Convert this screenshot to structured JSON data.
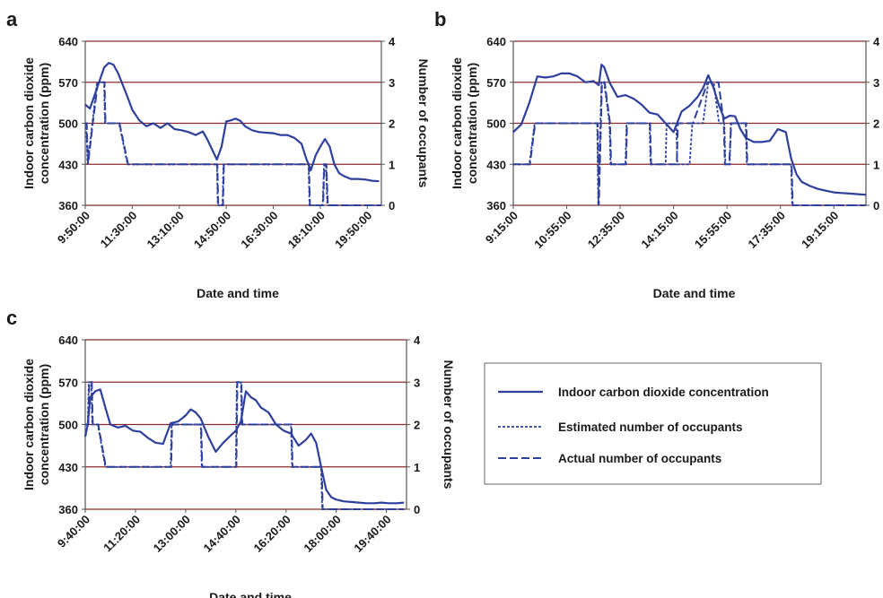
{
  "figure": {
    "legend": {
      "co2_label": "Indoor carbon dioxide concentration",
      "estimated_label": "Estimated number of occupants",
      "actual_label": "Actual number of occupants"
    }
  },
  "colors": {
    "series": "#2e3f9e",
    "grid": "#8b2a2a",
    "axis": "#555555",
    "text": "#1a1a1a"
  },
  "chart_data": [
    {
      "panel": "a",
      "type": "line",
      "xlabel": "Date and time",
      "ylabel_left": "Indoor carbon dioxide concentration (ppm)",
      "ylabel_right": "Number of occupants",
      "yticks_left": [
        "360",
        "430",
        "500",
        "570",
        "640"
      ],
      "yticks_right": [
        "0",
        "1",
        "2",
        "3",
        "4"
      ],
      "xticks": [
        "9:50:00",
        "11:30:00",
        "13:10:00",
        "14:50:00",
        "16:30:00",
        "18:10:00",
        "19:50:00"
      ],
      "xlim": [
        "9:50",
        "20:20"
      ],
      "ylim_left": [
        360,
        640
      ],
      "ylim_right": [
        0,
        4
      ],
      "grid": true,
      "co2": {
        "name": "Indoor carbon dioxide concentration",
        "x": [
          "9:50",
          "10:00",
          "10:15",
          "10:30",
          "10:40",
          "10:50",
          "11:00",
          "11:10",
          "11:20",
          "11:30",
          "11:45",
          "12:00",
          "12:15",
          "12:30",
          "12:45",
          "13:00",
          "13:15",
          "13:30",
          "13:45",
          "14:00",
          "14:10",
          "14:20",
          "14:30",
          "14:40",
          "14:50",
          "15:00",
          "15:10",
          "15:20",
          "15:30",
          "15:45",
          "16:00",
          "16:15",
          "16:30",
          "16:45",
          "17:00",
          "17:15",
          "17:30",
          "17:40",
          "17:50",
          "18:00",
          "18:10",
          "18:20",
          "18:30",
          "18:40",
          "18:50",
          "19:00",
          "19:15",
          "19:30",
          "19:45",
          "20:00",
          "20:15"
        ],
        "values": [
          532,
          525,
          560,
          595,
          603,
          600,
          585,
          565,
          545,
          523,
          505,
          495,
          500,
          492,
          500,
          490,
          488,
          485,
          480,
          486,
          472,
          455,
          438,
          460,
          503,
          505,
          508,
          504,
          495,
          488,
          485,
          484,
          483,
          480,
          480,
          475,
          465,
          440,
          420,
          445,
          460,
          473,
          460,
          430,
          415,
          410,
          405,
          405,
          404,
          402,
          401
        ]
      },
      "estimated": {
        "name": "Estimated number of occupants",
        "x": [
          "9:50",
          "9:52",
          "9:55",
          "10:05",
          "10:15",
          "10:18",
          "10:30",
          "10:32",
          "10:45",
          "10:47",
          "11:00",
          "11:02",
          "11:20",
          "11:30",
          "12:00",
          "12:30",
          "13:00",
          "13:30",
          "14:00",
          "14:20",
          "14:30",
          "14:32",
          "14:42",
          "14:44",
          "15:00",
          "15:30",
          "16:00",
          "16:30",
          "17:00",
          "17:30",
          "17:35",
          "17:45",
          "17:47",
          "18:00",
          "18:15",
          "18:18",
          "18:22",
          "18:25",
          "18:30",
          "19:00",
          "19:30",
          "20:00",
          "20:20"
        ],
        "values": [
          2,
          2,
          1,
          2,
          3,
          3,
          3,
          2,
          2,
          2,
          2,
          2,
          1,
          1,
          1,
          1,
          1,
          1,
          1,
          1,
          1,
          0,
          0,
          1,
          1,
          1,
          1,
          1,
          1,
          1,
          1,
          1,
          0,
          0,
          0,
          1,
          1,
          0,
          0,
          0,
          0,
          0,
          0
        ]
      },
      "actual": {
        "name": "Actual number of occupants",
        "x": [
          "9:50",
          "9:53",
          "9:56",
          "10:06",
          "10:17",
          "10:31",
          "10:33",
          "10:46",
          "10:48",
          "11:00",
          "11:03",
          "11:21",
          "11:30",
          "12:00",
          "13:00",
          "14:00",
          "14:21",
          "14:31",
          "14:33",
          "14:43",
          "14:45",
          "15:30",
          "16:30",
          "17:30",
          "17:46",
          "17:48",
          "18:00",
          "18:16",
          "18:19",
          "18:23",
          "18:26",
          "18:30",
          "19:00",
          "20:00",
          "20:20"
        ],
        "values": [
          2,
          2,
          1,
          2,
          3,
          3,
          2,
          2,
          2,
          2,
          2,
          1,
          1,
          1,
          1,
          1,
          1,
          1,
          0,
          0,
          1,
          1,
          1,
          1,
          1,
          0,
          0,
          0,
          1,
          1,
          0,
          0,
          0,
          0,
          0
        ]
      }
    },
    {
      "panel": "b",
      "type": "line",
      "xlabel": "Date and time",
      "ylabel_left": "Indoor carbon dioxide concentration (ppm)",
      "ylabel_right": "Number of occupants",
      "yticks_left": [
        "360",
        "430",
        "500",
        "570",
        "640"
      ],
      "yticks_right": [
        "0",
        "1",
        "2",
        "3",
        "4"
      ],
      "xticks": [
        "9:15:00",
        "10:55:00",
        "12:35:00",
        "14:15:00",
        "15:55:00",
        "17:35:00",
        "19:15:00"
      ],
      "xlim": [
        "9:15",
        "20:15"
      ],
      "ylim_left": [
        360,
        640
      ],
      "ylim_right": [
        0,
        4
      ],
      "grid": true,
      "co2": {
        "name": "Indoor carbon dioxide concentration",
        "x": [
          "9:15",
          "9:30",
          "9:45",
          "10:00",
          "10:15",
          "10:30",
          "10:45",
          "11:00",
          "11:15",
          "11:30",
          "11:45",
          "11:55",
          "12:00",
          "12:05",
          "12:15",
          "12:30",
          "12:45",
          "13:00",
          "13:15",
          "13:30",
          "13:45",
          "14:00",
          "14:15",
          "14:30",
          "14:45",
          "15:00",
          "15:10",
          "15:20",
          "15:30",
          "15:40",
          "15:50",
          "16:00",
          "16:10",
          "16:20",
          "16:30",
          "16:45",
          "17:00",
          "17:15",
          "17:30",
          "17:45",
          "17:55",
          "18:05",
          "18:15",
          "18:30",
          "18:45",
          "19:00",
          "19:15",
          "19:30",
          "19:45",
          "20:00",
          "20:15"
        ],
        "values": [
          485,
          498,
          535,
          580,
          578,
          580,
          585,
          585,
          580,
          570,
          572,
          565,
          600,
          596,
          570,
          545,
          548,
          542,
          532,
          518,
          515,
          500,
          485,
          520,
          530,
          545,
          560,
          582,
          560,
          530,
          508,
          513,
          512,
          490,
          475,
          468,
          468,
          470,
          490,
          485,
          440,
          413,
          400,
          393,
          388,
          385,
          382,
          381,
          380,
          379,
          378
        ]
      },
      "estimated": {
        "name": "Estimated number of occupants",
        "x": [
          "9:15",
          "9:30",
          "9:45",
          "9:55",
          "11:00",
          "11:30",
          "11:52",
          "11:54",
          "11:58",
          "12:00",
          "12:05",
          "12:15",
          "12:17",
          "12:45",
          "12:47",
          "13:30",
          "13:32",
          "14:00",
          "14:02",
          "14:15",
          "14:20",
          "14:22",
          "14:45",
          "14:50",
          "15:10",
          "15:20",
          "15:30",
          "15:40",
          "15:50",
          "15:52",
          "16:00",
          "16:02",
          "16:10",
          "16:12",
          "16:30",
          "16:32",
          "17:00",
          "17:30",
          "17:45",
          "17:55",
          "17:57",
          "18:30",
          "19:00",
          "19:30",
          "20:15"
        ],
        "values": [
          1,
          1,
          1,
          2,
          2,
          2,
          2,
          0,
          2,
          3,
          3,
          2,
          1,
          1,
          2,
          2,
          1,
          1,
          2,
          2,
          2,
          1,
          1,
          2,
          2,
          3,
          3,
          2,
          2,
          1,
          1,
          2,
          2,
          2,
          2,
          1,
          1,
          1,
          1,
          1,
          0,
          0,
          0,
          0,
          0
        ]
      },
      "actual": {
        "name": "Actual number of occupants",
        "x": [
          "9:15",
          "9:46",
          "9:56",
          "11:53",
          "11:55",
          "11:59",
          "12:01",
          "12:06",
          "12:16",
          "12:18",
          "12:46",
          "12:48",
          "13:31",
          "13:33",
          "14:21",
          "14:23",
          "14:49",
          "14:51",
          "15:19",
          "15:29",
          "15:39",
          "15:49",
          "15:51",
          "15:59",
          "16:03",
          "16:13",
          "16:31",
          "16:33",
          "17:56",
          "17:58",
          "19:00",
          "20:15"
        ],
        "values": [
          1,
          1,
          2,
          2,
          0,
          2,
          3,
          3,
          2,
          1,
          1,
          2,
          2,
          1,
          1,
          2,
          2,
          2,
          3,
          3,
          3,
          2,
          1,
          1,
          2,
          2,
          2,
          1,
          1,
          0,
          0,
          0
        ]
      }
    },
    {
      "panel": "c",
      "type": "line",
      "xlabel": "Date and time",
      "ylabel_left": "Indoor carbon dioxide concentration (ppm)",
      "ylabel_right": "Number of occupants",
      "yticks_left": [
        "360",
        "430",
        "500",
        "570",
        "640"
      ],
      "yticks_right": [
        "0",
        "1",
        "2",
        "3",
        "4"
      ],
      "xticks": [
        "9:40:00",
        "11:20:00",
        "13:00:00",
        "14:40:00",
        "16:20:00",
        "18:00:00",
        "19:40:00"
      ],
      "xlim": [
        "9:40",
        "20:20"
      ],
      "ylim_left": [
        360,
        640
      ],
      "ylim_right": [
        0,
        4
      ],
      "grid": true,
      "co2": {
        "name": "Indoor carbon dioxide concentration",
        "x": [
          "9:40",
          "9:45",
          "9:50",
          "10:00",
          "10:10",
          "10:20",
          "10:30",
          "10:45",
          "11:00",
          "11:15",
          "11:30",
          "11:45",
          "12:00",
          "12:15",
          "12:30",
          "12:45",
          "13:00",
          "13:10",
          "13:20",
          "13:30",
          "13:45",
          "14:00",
          "14:15",
          "14:30",
          "14:40",
          "14:50",
          "15:00",
          "15:10",
          "15:20",
          "15:30",
          "15:45",
          "16:00",
          "16:15",
          "16:30",
          "16:45",
          "17:00",
          "17:10",
          "17:20",
          "17:30",
          "17:40",
          "17:50",
          "18:00",
          "18:15",
          "18:30",
          "18:45",
          "19:00",
          "19:15",
          "19:30",
          "19:45",
          "20:00",
          "20:15"
        ],
        "values": [
          480,
          500,
          545,
          555,
          558,
          528,
          500,
          495,
          498,
          490,
          488,
          478,
          470,
          468,
          502,
          505,
          515,
          525,
          520,
          510,
          480,
          455,
          470,
          482,
          490,
          505,
          555,
          545,
          540,
          528,
          520,
          500,
          490,
          485,
          465,
          475,
          485,
          470,
          430,
          392,
          380,
          376,
          373,
          372,
          371,
          370,
          370,
          371,
          370,
          370,
          371
        ]
      },
      "estimated": {
        "name": "Estimated number of occupants",
        "x": [
          "9:40",
          "9:45",
          "9:47",
          "9:52",
          "9:54",
          "10:05",
          "10:20",
          "10:30",
          "11:00",
          "11:30",
          "12:00",
          "12:30",
          "12:32",
          "13:00",
          "13:30",
          "13:32",
          "14:00",
          "14:30",
          "14:40",
          "14:42",
          "14:50",
          "14:52",
          "15:30",
          "16:00",
          "16:30",
          "16:32",
          "17:00",
          "17:30",
          "17:32",
          "18:00",
          "19:00",
          "20:15"
        ],
        "values": [
          2,
          2,
          3,
          3,
          2,
          2,
          1,
          1,
          1,
          1,
          1,
          1,
          2,
          2,
          2,
          1,
          1,
          1,
          1,
          3,
          3,
          2,
          2,
          2,
          2,
          1,
          1,
          1,
          0,
          0,
          0,
          0
        ]
      },
      "actual": {
        "name": "Actual number of occupants",
        "x": [
          "9:40",
          "9:46",
          "9:48",
          "9:53",
          "9:55",
          "10:06",
          "10:21",
          "11:00",
          "12:31",
          "12:33",
          "13:31",
          "13:33",
          "14:41",
          "14:43",
          "14:51",
          "14:53",
          "16:31",
          "16:33",
          "17:31",
          "17:33",
          "20:15"
        ],
        "values": [
          2,
          2,
          3,
          3,
          2,
          2,
          1,
          1,
          1,
          2,
          2,
          1,
          1,
          3,
          3,
          2,
          2,
          1,
          1,
          0,
          0
        ]
      }
    }
  ]
}
